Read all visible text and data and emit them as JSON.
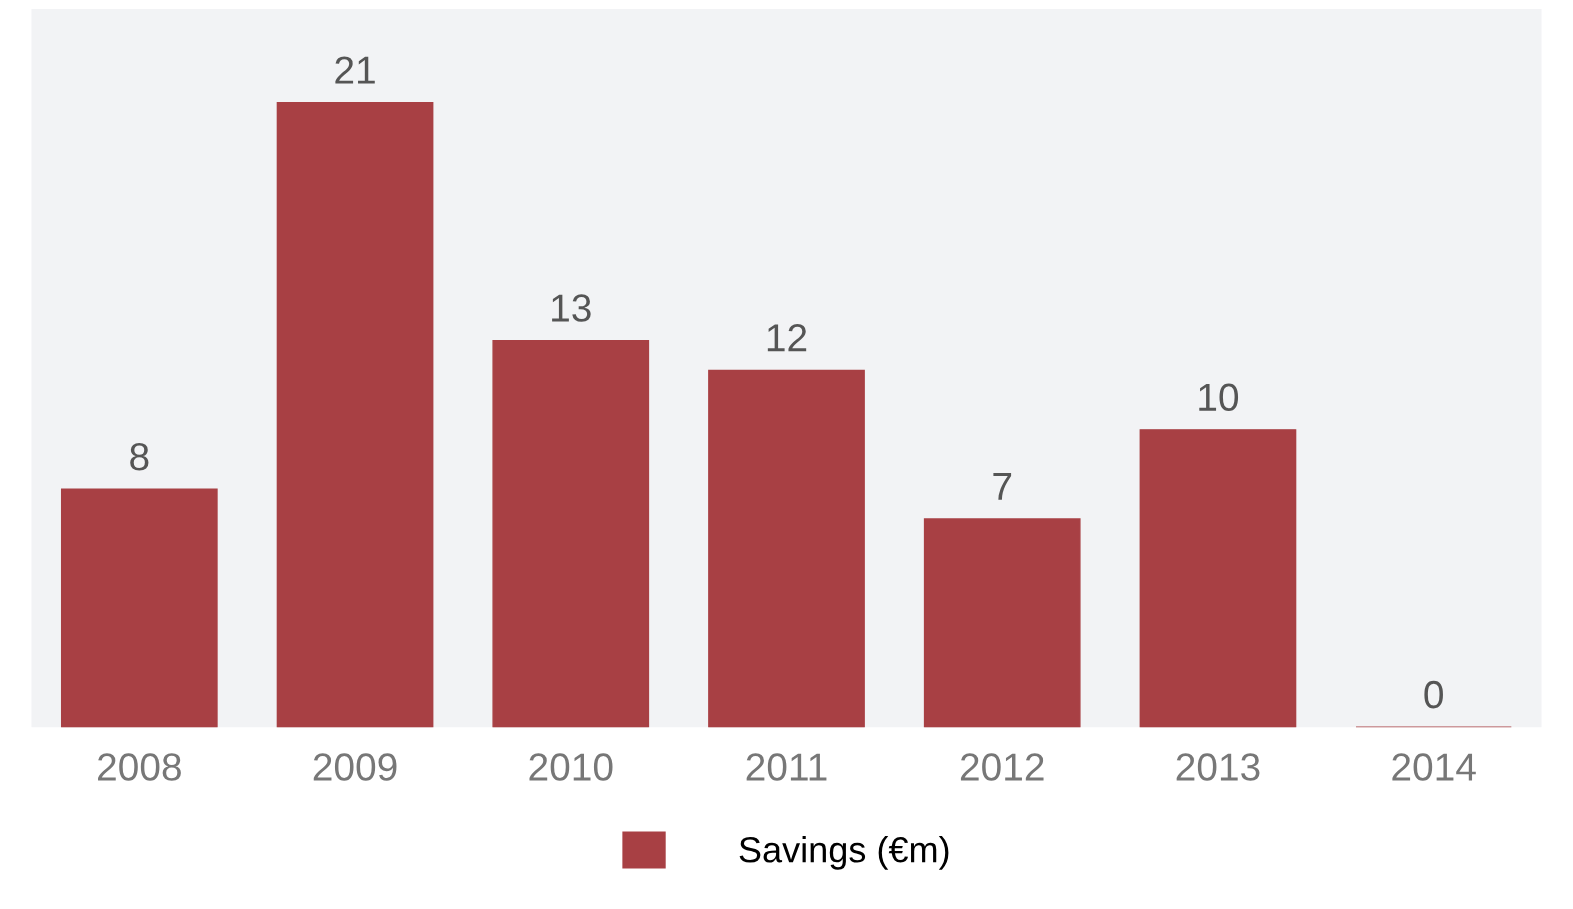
{
  "chart_data": {
    "type": "bar",
    "categories": [
      "2008",
      "2009",
      "2010",
      "2011",
      "2012",
      "2013",
      "2014"
    ],
    "series": [
      {
        "name": "Savings (€m)",
        "color": "#a84044",
        "values": [
          8,
          21,
          13,
          12,
          7,
          10,
          0
        ]
      }
    ],
    "data_labels": true,
    "legend": "bottom",
    "grid": false,
    "tick_labels": "x"
  }
}
